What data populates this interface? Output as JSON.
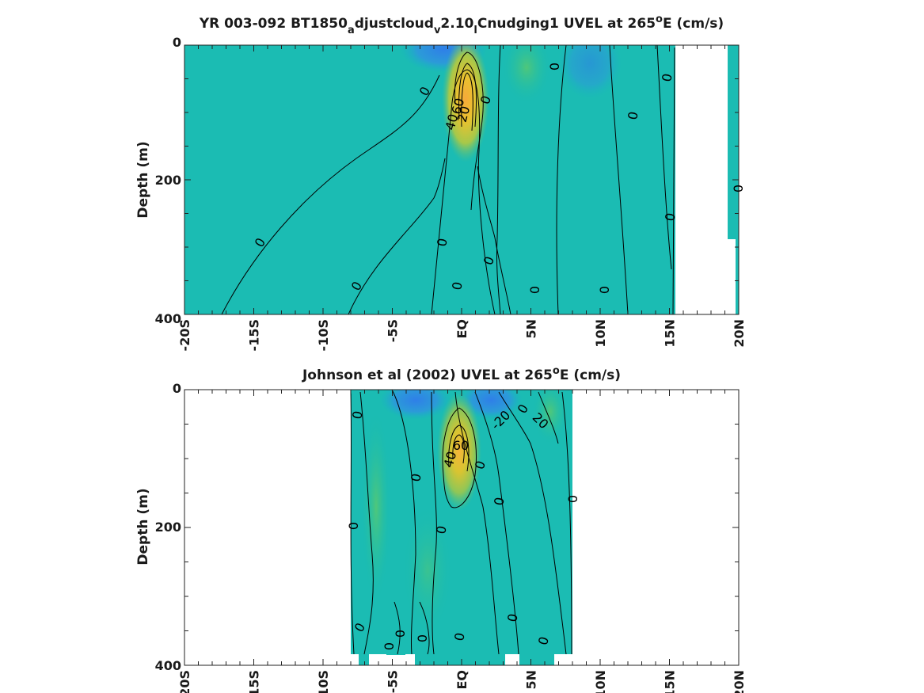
{
  "chart_data": [
    {
      "type": "heatmap",
      "title_parts": [
        "YR 003-092 BT1850",
        "a",
        "djustcloud",
        "v",
        "2.10",
        "l",
        "Cnudging1 UVEL at 265",
        "o",
        "E (cm/s)"
      ],
      "ylabel": "Depth (m)",
      "x_ticklabels": [
        "-20S",
        "-15S",
        "-10S",
        "-5S",
        "EQ",
        "5N",
        "10N",
        "15N",
        "20N"
      ],
      "x_ticks": [
        -20,
        -15,
        -10,
        -5,
        0,
        5,
        10,
        15,
        20
      ],
      "y_ticklabels": [
        "0",
        "200",
        "400"
      ],
      "y_ticks": [
        0,
        200,
        400
      ],
      "xlim": [
        -20,
        20
      ],
      "ylim": [
        0,
        400
      ],
      "y_reversed": true,
      "contour_labels": [
        "0",
        "0",
        "0",
        "0",
        "0",
        "0",
        "0",
        "0",
        "0",
        "0",
        "0",
        "0",
        "0",
        "0",
        "0",
        "0",
        "20",
        "40",
        "60"
      ],
      "data_region": {
        "x_range": [
          -20,
          15.3
        ],
        "notes": "masked beyond 15.3N except strip near 19.5N-20N"
      },
      "core": {
        "lat": 0,
        "depth": 90,
        "max_value": 60
      },
      "colormap": "parula"
    },
    {
      "type": "heatmap",
      "title_parts": [
        "Johnson et al (2002) UVEL at 265",
        "o",
        "E (cm/s)"
      ],
      "ylabel": "Depth (m)",
      "x_ticklabels": [
        "-20S",
        "-15S",
        "-10S",
        "-5S",
        "EQ",
        "5N",
        "10N",
        "15N",
        "20N"
      ],
      "x_ticks": [
        -20,
        -15,
        -10,
        -5,
        0,
        5,
        10,
        15,
        20
      ],
      "y_ticklabels": [
        "0",
        "200",
        "400"
      ],
      "y_ticks": [
        0,
        200,
        400
      ],
      "xlim": [
        -20,
        20
      ],
      "ylim": [
        0,
        400
      ],
      "y_reversed": true,
      "contour_labels": [
        "0",
        "0",
        "0",
        "0",
        "0",
        "0",
        "0",
        "0",
        "0",
        "0",
        "0",
        "0",
        "0",
        "0",
        "-20",
        "20",
        "20",
        "40",
        "60"
      ],
      "data_region": {
        "x_range": [
          -8,
          8
        ]
      },
      "core": {
        "lat": 0,
        "depth": 75,
        "max_value": 60
      },
      "colormap": "parula"
    }
  ]
}
